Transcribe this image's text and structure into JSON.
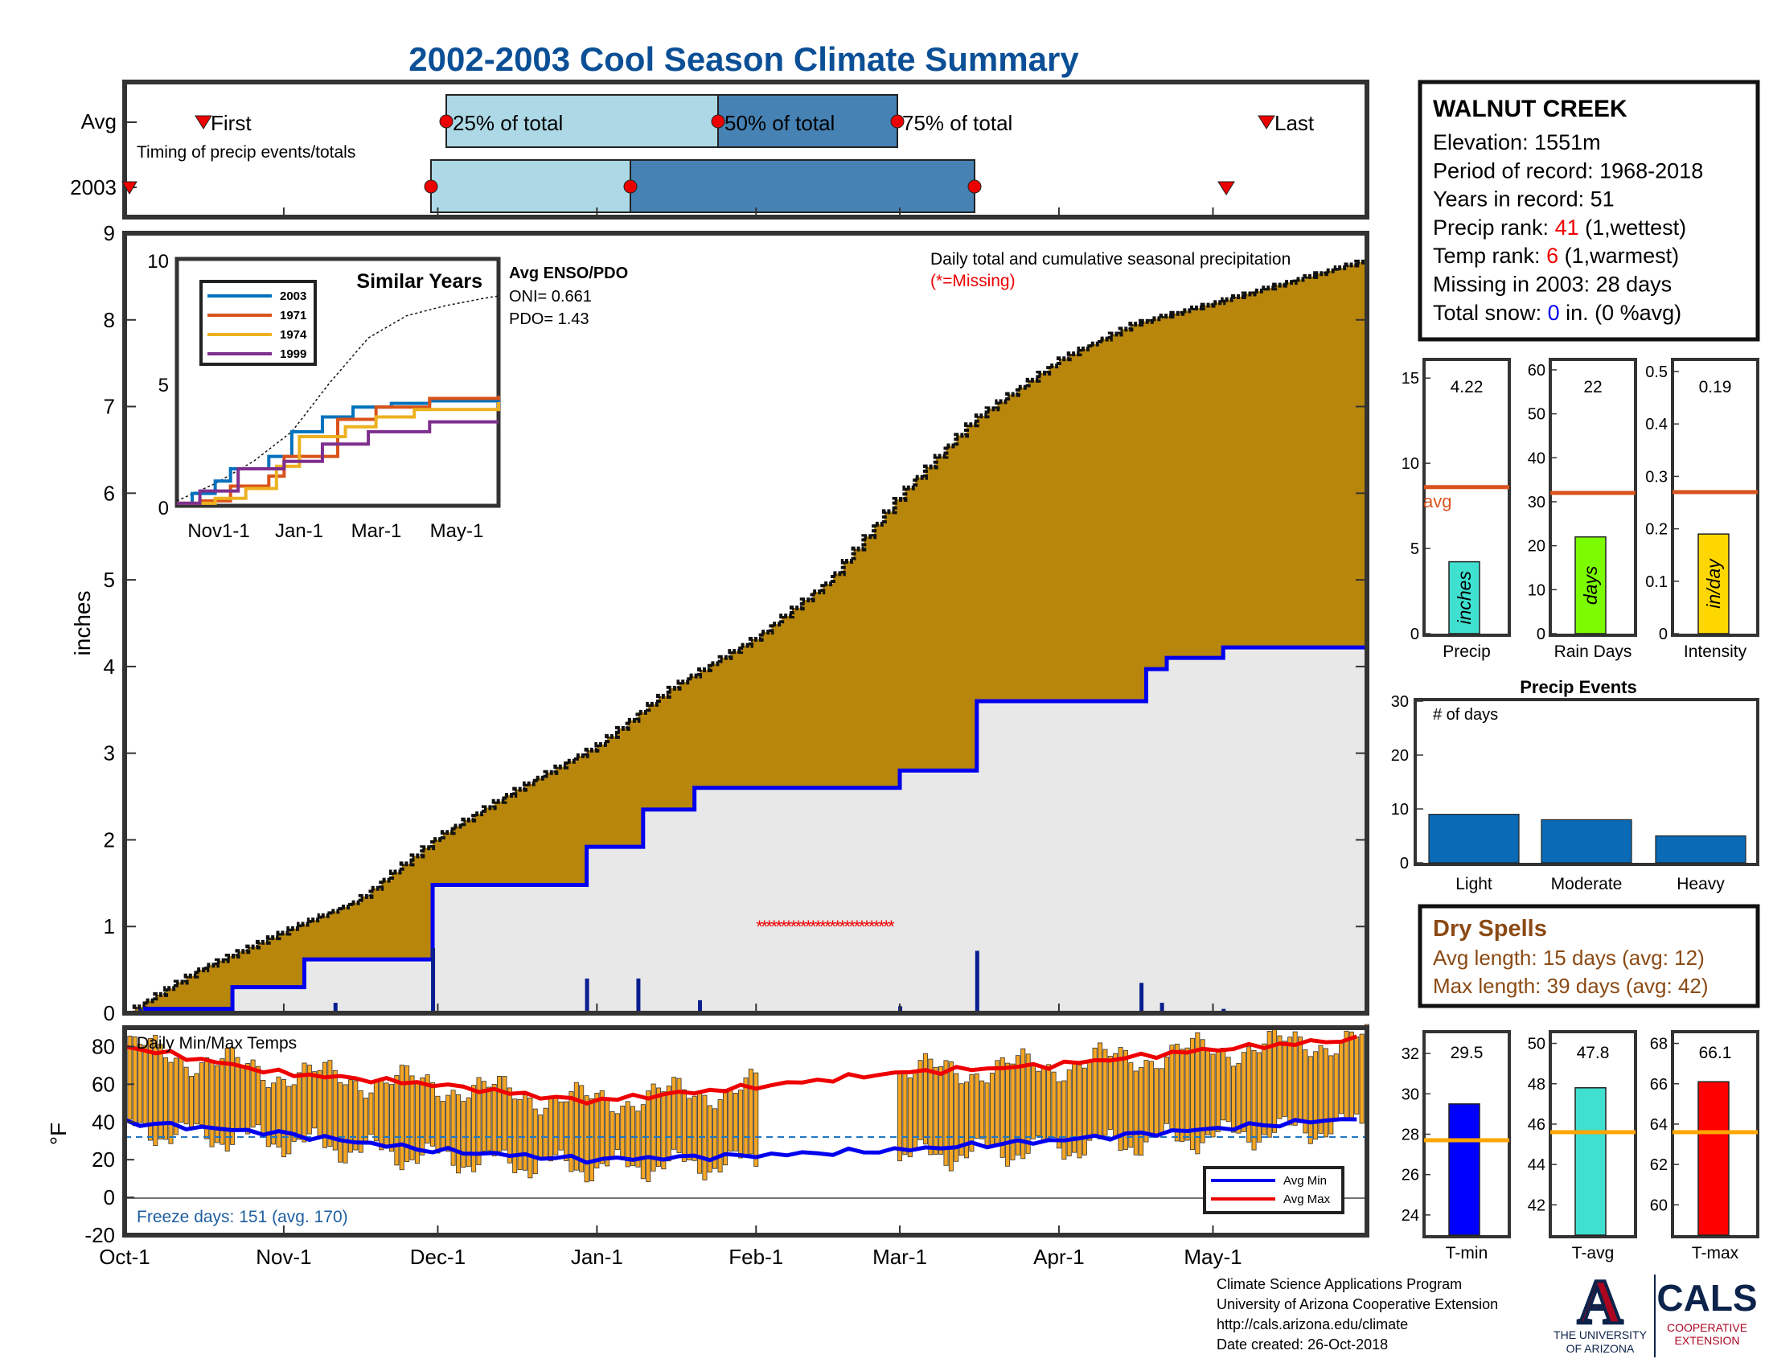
{
  "title": "2002-2003 Cool Season Climate Summary",
  "colors": {
    "title": "#0b4f96",
    "cum_fill": "#b8860b",
    "avg_fill": "#e9e8e8",
    "blue": "#0000ee",
    "red": "#ee0000",
    "orange_bar": "#f5a623",
    "avgline": "#d9531e",
    "brown_text": "#8b4a14",
    "light_box": "#add8e6",
    "dark_box": "#4682b4",
    "precip_bar": "#40e0d0",
    "raindays_bar": "#7cfc00",
    "intensity_bar": "#ffd700",
    "event_bar": "#0a6ab6",
    "tmin_bar": "#0000ff",
    "tavg_bar": "#40e0d0",
    "tmax_bar": "#ff0000",
    "temp_avgline": "#ffa500"
  },
  "timing": {
    "row_labels": [
      "Avg",
      "2003"
    ],
    "caption": "Timing of precip events/totals",
    "first_label": "First",
    "last_label": "Last",
    "p25_label": "25% of total",
    "p50_label": "50% of total",
    "p75_label": "75% of total"
  },
  "station": {
    "name": "WALNUT CREEK",
    "lines": [
      {
        "pre": "Elevation: 1551m",
        "hl": "",
        "post": "",
        "hl_color": ""
      },
      {
        "pre": "Period of record: 1968-2018",
        "hl": "",
        "post": "",
        "hl_color": ""
      },
      {
        "pre": "Years in record: 51",
        "hl": "",
        "post": "",
        "hl_color": ""
      },
      {
        "pre": "Precip rank: ",
        "hl": "41",
        "post": " (1,wettest)",
        "hl_color": "#ee0000"
      },
      {
        "pre": "Temp rank: ",
        "hl": "6",
        "post": " (1,warmest)",
        "hl_color": "#ee0000"
      },
      {
        "pre": "Missing in 2003: 28 days",
        "hl": "",
        "post": "",
        "hl_color": ""
      },
      {
        "pre": "Total snow: ",
        "hl": "0",
        "post": " in. (0 %avg)",
        "hl_color": "#0000ee"
      }
    ]
  },
  "main_chart": {
    "ylabel": "inches",
    "annotation": "Daily total and cumulative seasonal precipitation",
    "missing_note": "(*=Missing)",
    "x_ticks": [
      "Oct-1",
      "Nov-1",
      "Dec-1",
      "Jan-1",
      "Feb-1",
      "Mar-1",
      "Apr-1",
      "May-1"
    ],
    "y_ticks": [
      "0",
      "1",
      "2",
      "3",
      "4",
      "5",
      "6",
      "7",
      "8",
      "9"
    ]
  },
  "inset": {
    "title": "Similar Years",
    "enso_title": "Avg ENSO/PDO",
    "oni": "ONI= 0.661",
    "pdo": "PDO= 1.43",
    "y_ticks": [
      "0",
      "5",
      "10"
    ],
    "x_ticks": [
      "Nov1-1",
      "Jan-1",
      "Mar-1",
      "May-1"
    ],
    "legend": [
      "2003",
      "1971",
      "1974",
      "1999"
    ]
  },
  "temps": {
    "title": "Daily Min/Max Temps",
    "ylabel": "°F",
    "y_ticks": [
      "80",
      "60",
      "40",
      "20",
      "0",
      "-20"
    ],
    "freeze": "Freeze days: 151 (avg. 170)",
    "legend_min": "Avg Min",
    "legend_max": "Avg Max"
  },
  "small_bars": {
    "avg_label": "avg",
    "precip": {
      "value": "4.22",
      "label": "Precip",
      "unit": "inches",
      "ticks": [
        "15",
        "10",
        "5",
        "0"
      ]
    },
    "raindays": {
      "value": "22",
      "label": "Rain Days",
      "unit": "days",
      "ticks": [
        "60",
        "50",
        "40",
        "30",
        "20",
        "10",
        "0"
      ]
    },
    "intensity": {
      "value": "0.19",
      "label": "Intensity",
      "unit": "in/day",
      "ticks": [
        "0.5",
        "0.4",
        "0.3",
        "0.2",
        "0.1",
        "0"
      ]
    }
  },
  "events": {
    "title": "Precip Events",
    "ylabel": "# of days",
    "y_ticks": [
      "30",
      "20",
      "10",
      "0"
    ],
    "categories": [
      "Light",
      "Moderate",
      "Heavy"
    ]
  },
  "dry_spells": {
    "title": "Dry Spells",
    "avg_line": "Avg length: 15 days (avg: 12)",
    "max_line": "Max length: 39 days (avg: 42)"
  },
  "temp_bars": {
    "tmin": {
      "value": "29.5",
      "label": "T-min",
      "ticks": [
        "32",
        "30",
        "28",
        "26",
        "24"
      ]
    },
    "tavg": {
      "value": "47.8",
      "label": "T-avg",
      "ticks": [
        "50",
        "48",
        "46",
        "44",
        "42"
      ]
    },
    "tmax": {
      "value": "66.1",
      "label": "T-max",
      "ticks": [
        "68",
        "66",
        "64",
        "62",
        "60"
      ]
    }
  },
  "footer": {
    "lines": [
      "Climate Science Applications Program",
      "University of Arizona Cooperative Extension",
      "http://cals.arizona.edu/climate",
      " Date created: 26-Oct-2018"
    ],
    "ua_line1": "THE UNIVERSITY",
    "ua_line2": "OF ARIZONA",
    "cals": "CALS",
    "cals_sub1": "COOPERATIVE",
    "cals_sub2": "EXTENSION"
  },
  "chart_data": [
    {
      "type": "area",
      "title": "Daily total and cumulative seasonal precipitation",
      "ylabel": "inches",
      "ylim": [
        0,
        9
      ],
      "x_range": [
        "Oct-1",
        "May-31"
      ],
      "series": [
        {
          "name": "",
          "x": [
            "Oct-1",
            "Oct-15",
            "Nov-1",
            "Nov-15",
            "Dec-1",
            "Dec-15",
            "Jan-1",
            "Jan-15",
            "Feb-1",
            "Feb-15",
            "Mar-1",
            "Mar-15",
            "Apr-1",
            "Apr-15",
            "May-1",
            "May-31"
          ],
          "values": [
            0.0,
            0.5,
            0.95,
            1.3,
            2.05,
            2.55,
            3.1,
            3.75,
            4.35,
            5.0,
            6.0,
            6.85,
            7.55,
            7.95,
            8.2,
            8.7
          ]
        },
        {
          "name": "",
          "steps": [
            [
              "Oct-1",
              0
            ],
            [
              "Oct-5",
              0.05
            ],
            [
              "Oct-22",
              0.3
            ],
            [
              "Nov-5",
              0.62
            ],
            [
              "Nov-30",
              1.48
            ],
            [
              "Dec-30",
              1.92
            ],
            [
              "Jan-10",
              2.35
            ],
            [
              "Jan-20",
              2.6
            ],
            [
              "Mar-1",
              2.8
            ],
            [
              "Mar-16",
              3.6
            ],
            [
              "Apr-18",
              3.97
            ],
            [
              "Apr-22",
              4.1
            ],
            [
              "May-3",
              4.22
            ]
          ]
        }
      ],
      "daily_bars": [
        [
          "Oct-4",
          0.05
        ],
        [
          "Nov-11",
          0.12
        ],
        [
          "Nov-30",
          0.75
        ],
        [
          "Dec-30",
          0.4
        ],
        [
          "Jan-9",
          0.4
        ],
        [
          "Jan-21",
          0.15
        ],
        [
          "Mar-1",
          0.08
        ],
        [
          "Mar-16",
          0.72
        ],
        [
          "Apr-17",
          0.35
        ],
        [
          "Apr-21",
          0.12
        ],
        [
          "May-3",
          0.05
        ]
      ],
      "missing_range": [
        "Feb-1",
        "Feb-28"
      ],
      "missing_y": 1.0
    },
    {
      "type": "line",
      "title": "Similar Years",
      "ylim": [
        0,
        10
      ],
      "x_range": [
        "Nov1-1",
        "May-31"
      ],
      "series": [
        {
          "name": "2003",
          "color": "#0072bd",
          "steps": [
            [
              0,
              0.1
            ],
            [
              0.2,
              0.5
            ],
            [
              0.5,
              1.0
            ],
            [
              0.7,
              1.5
            ],
            [
              1.2,
              2.0
            ],
            [
              1.5,
              3.0
            ],
            [
              1.9,
              3.6
            ],
            [
              2.3,
              4.0
            ],
            [
              2.8,
              4.15
            ],
            [
              3.3,
              4.25
            ],
            [
              4.2,
              4.3
            ]
          ]
        },
        {
          "name": "1971",
          "color": "#d95319",
          "steps": [
            [
              0,
              0.1
            ],
            [
              0.3,
              0.2
            ],
            [
              0.7,
              0.8
            ],
            [
              1.2,
              1.2
            ],
            [
              1.4,
              2.0
            ],
            [
              2.1,
              3.5
            ],
            [
              2.6,
              4.0
            ],
            [
              3.3,
              4.35
            ],
            [
              4.2,
              4.45
            ]
          ]
        },
        {
          "name": "1974",
          "color": "#edb120",
          "steps": [
            [
              0,
              0.1
            ],
            [
              0.5,
              0.3
            ],
            [
              0.9,
              0.7
            ],
            [
              1.3,
              1.6
            ],
            [
              1.6,
              2.8
            ],
            [
              2.2,
              3.2
            ],
            [
              2.6,
              3.6
            ],
            [
              3.1,
              3.9
            ],
            [
              4.2,
              4.2
            ]
          ]
        },
        {
          "name": "1999",
          "color": "#7e2f8e",
          "steps": [
            [
              0,
              0.1
            ],
            [
              0.3,
              0.6
            ],
            [
              0.8,
              1.5
            ],
            [
              1.4,
              1.8
            ],
            [
              1.9,
              2.5
            ],
            [
              2.5,
              3.0
            ],
            [
              3.3,
              3.4
            ],
            [
              4.2,
              3.4
            ]
          ]
        }
      ],
      "avg_curve": [
        [
          0,
          0.2
        ],
        [
          0.5,
          0.9
        ],
        [
          1.0,
          1.8
        ],
        [
          1.5,
          3.0
        ],
        [
          2.0,
          5.0
        ],
        [
          2.5,
          6.8
        ],
        [
          3.0,
          7.7
        ],
        [
          3.5,
          8.1
        ],
        [
          4.0,
          8.4
        ],
        [
          4.2,
          8.5
        ]
      ]
    },
    {
      "type": "bar",
      "title": "Daily Min/Max Temps",
      "ylabel": "°F",
      "ylim": [
        -20,
        90
      ],
      "avg_max": [
        [
          0,
          80
        ],
        [
          30,
          66
        ],
        [
          60,
          60
        ],
        [
          90,
          51
        ],
        [
          120,
          58
        ],
        [
          150,
          66
        ],
        [
          180,
          70
        ],
        [
          210,
          78
        ],
        [
          240,
          84
        ]
      ],
      "avg_min": [
        [
          0,
          40
        ],
        [
          30,
          34
        ],
        [
          60,
          25
        ],
        [
          90,
          20
        ],
        [
          120,
          22
        ],
        [
          150,
          25
        ],
        [
          180,
          30
        ],
        [
          210,
          36
        ],
        [
          240,
          42
        ]
      ],
      "freeze_line": 32,
      "missing_range": [
        "Feb-1",
        "Feb-28"
      ]
    },
    {
      "type": "bar",
      "categories": [
        "Precip",
        "Rain Days",
        "Intensity"
      ],
      "values": [
        4.22,
        22,
        0.19
      ],
      "averages": [
        8.6,
        32,
        0.27
      ],
      "ylims": [
        [
          0,
          16
        ],
        [
          0,
          62
        ],
        [
          0,
          0.52
        ]
      ]
    },
    {
      "type": "bar",
      "title": "Precip Events",
      "ylabel": "# of days",
      "categories": [
        "Light",
        "Moderate",
        "Heavy"
      ],
      "values": [
        9,
        8,
        5
      ],
      "ylim": [
        0,
        30
      ]
    },
    {
      "type": "bar",
      "categories": [
        "T-min",
        "T-avg",
        "T-max"
      ],
      "values": [
        29.5,
        47.8,
        66.1
      ],
      "averages": [
        27.7,
        45.6,
        63.6
      ],
      "ylims": [
        [
          23,
          33
        ],
        [
          40.5,
          50.5
        ],
        [
          58.5,
          68.5
        ]
      ]
    }
  ]
}
